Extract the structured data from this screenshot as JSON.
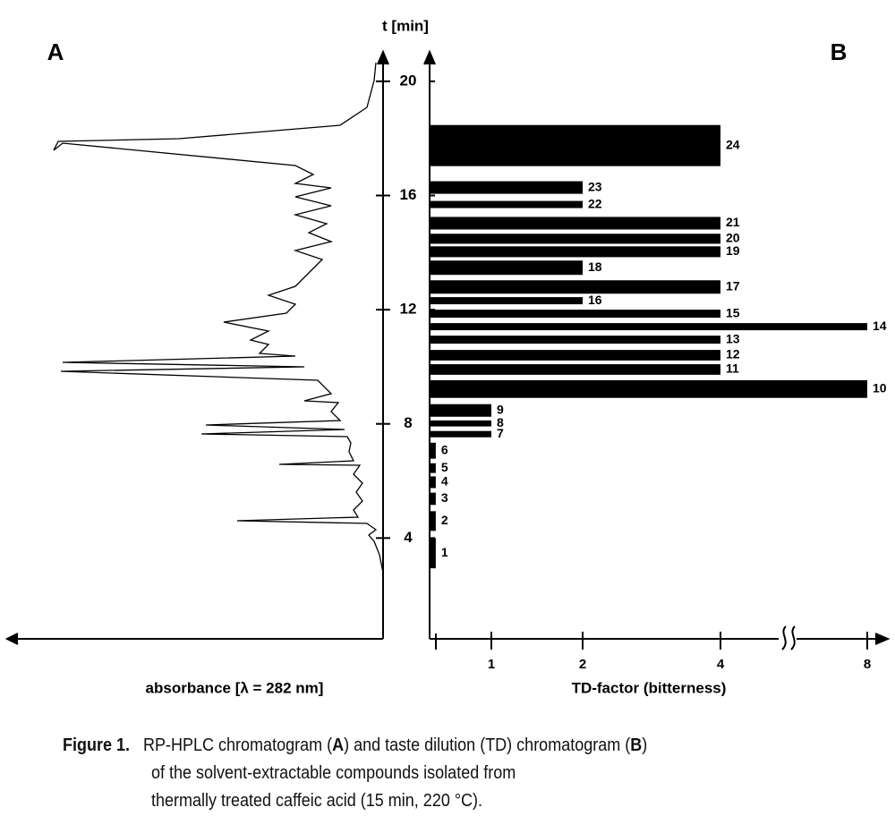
{
  "panel_a": {
    "label": "A",
    "xlabel": "absorbance [λ = 282 nm]"
  },
  "chart_data": {
    "type": "barh",
    "panel_label": "B",
    "ylabel": "t [min]",
    "xlabel": "TD-factor (bitterness)",
    "categories": [
      "1",
      "2",
      "3",
      "4",
      "5",
      "6",
      "7",
      "8",
      "9",
      "10",
      "11",
      "12",
      "13",
      "14",
      "15",
      "16",
      "17",
      "18",
      "19",
      "20",
      "21",
      "22",
      "23",
      "24"
    ],
    "values": [
      0.1,
      0.1,
      0.1,
      0.1,
      0.1,
      0.1,
      1,
      1,
      1,
      8,
      4,
      4,
      4,
      8,
      4,
      2,
      4,
      2,
      4,
      4,
      4,
      2,
      2,
      4
    ],
    "t_from": [
      2.94,
      4.25,
      5.16,
      5.75,
      6.28,
      6.78,
      7.53,
      7.91,
      8.25,
      8.91,
      9.72,
      10.22,
      10.81,
      11.28,
      11.72,
      12.19,
      12.56,
      13.22,
      13.84,
      14.31,
      14.81,
      15.56,
      16.06,
      17.03
    ],
    "t_to": [
      4.0,
      4.94,
      5.59,
      6.16,
      6.62,
      7.34,
      7.75,
      8.12,
      8.69,
      9.53,
      10.09,
      10.59,
      11.09,
      11.53,
      12.0,
      12.44,
      13.03,
      13.72,
      14.22,
      14.66,
      15.25,
      15.81,
      16.5,
      18.47
    ],
    "color": "#000000",
    "ylim": [
      0.5,
      21
    ],
    "yticks": [
      4,
      8,
      12,
      16,
      20
    ],
    "xticks": [
      1,
      2,
      4,
      8
    ]
  },
  "caption": {
    "label": "Figure 1.",
    "line1": [
      "RP-HPLC chromatogram (",
      "A",
      ") and taste dilution (TD) chromatogram (",
      "B",
      ")"
    ],
    "line2": "of the solvent-extractable compounds isolated from",
    "line3": "thermally treated  caffeic acid (15 min, 220 °C)."
  }
}
